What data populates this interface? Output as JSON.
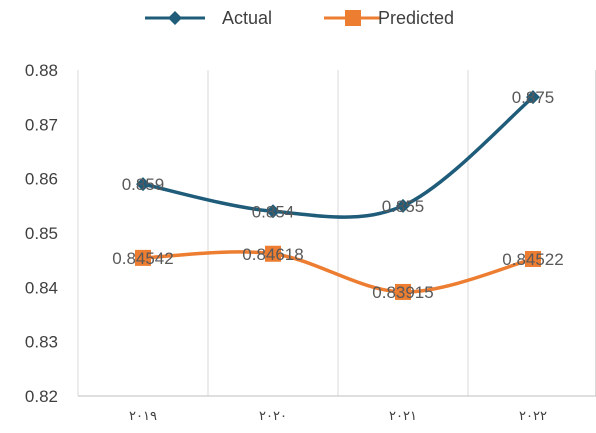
{
  "chart_data": {
    "type": "line",
    "categories": [
      "٢٠١٩",
      "٢٠٢٠",
      "٢٠٢١",
      "٢٠٢٢"
    ],
    "series": [
      {
        "name": "Actual",
        "values": [
          0.859,
          0.854,
          0.855,
          0.875
        ],
        "labels": [
          "0.859",
          "0.854",
          "0.855",
          "0.875"
        ],
        "color": "#1f5c7a",
        "marker": "diamond"
      },
      {
        "name": "Predicted",
        "values": [
          0.84542,
          0.84618,
          0.83915,
          0.84522
        ],
        "labels": [
          "0.84542",
          "0.84618",
          "0.83915",
          "0.84522"
        ],
        "color": "#ed7d31",
        "marker": "square"
      }
    ],
    "ylim": [
      0.82,
      0.88
    ],
    "yticks": [
      "0.82",
      "0.83",
      "0.84",
      "0.85",
      "0.86",
      "0.87",
      "0.88"
    ],
    "smooth": true,
    "grid": "vertical category separators",
    "legend": "top"
  }
}
